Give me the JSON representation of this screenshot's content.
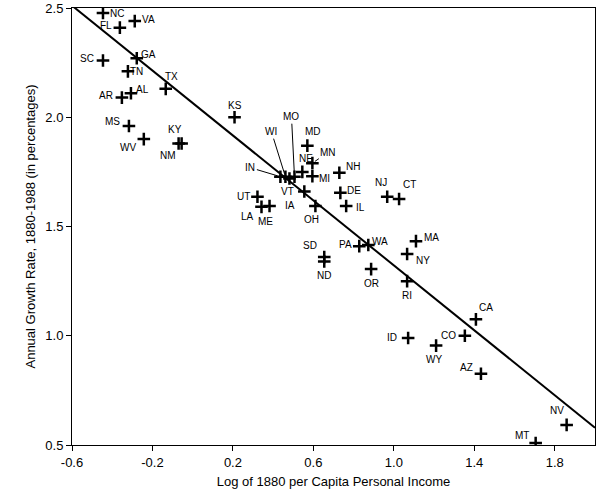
{
  "chart_data": {
    "type": "scatter",
    "x_label": "Log of 1880 per Capita Personal Income",
    "y_label": "Annual Growth Rate, 1880-1988 (in percentages)",
    "point_labels": [
      "NC",
      "VA",
      "FL",
      "GA",
      "SC",
      "TN",
      "TX",
      "AR",
      "AL",
      "KS",
      "MS",
      "WV",
      "KY",
      "NM",
      "IN",
      "WI",
      "VT",
      "MO",
      "NE",
      "MD",
      "MN",
      "NH",
      "MI",
      "DE",
      "IL",
      "IA",
      "OH",
      "UT",
      "LA",
      "ME",
      "NJ",
      "CT",
      "MA",
      "NY",
      "WA",
      "PA",
      "SD",
      "ND",
      "OR",
      "RI",
      "CA",
      "ID",
      "CO",
      "WY",
      "AZ",
      "MT",
      "NV"
    ],
    "x": [
      -0.446,
      -0.288,
      -0.362,
      -0.278,
      -0.446,
      -0.322,
      -0.134,
      -0.352,
      -0.307,
      0.208,
      -0.317,
      -0.243,
      -0.07,
      -0.055,
      0.436,
      0.461,
      0.481,
      0.506,
      0.545,
      0.57,
      0.595,
      0.729,
      0.595,
      0.734,
      0.763,
      0.555,
      0.61,
      0.322,
      0.342,
      0.382,
      0.967,
      1.026,
      1.11,
      1.066,
      0.873,
      0.828,
      0.654,
      0.654,
      0.887,
      1.066,
      1.408,
      1.071,
      1.353,
      1.21,
      1.433,
      1.705,
      1.859
    ],
    "y": [
      2.477,
      2.44,
      2.41,
      2.27,
      2.26,
      2.21,
      2.13,
      2.09,
      2.11,
      2.0,
      1.96,
      1.9,
      1.88,
      1.88,
      1.728,
      1.728,
      1.72,
      1.728,
      1.75,
      1.87,
      1.79,
      1.746,
      1.73,
      1.654,
      1.594,
      1.66,
      1.594,
      1.636,
      1.59,
      1.594,
      1.636,
      1.626,
      1.433,
      1.374,
      1.415,
      1.41,
      1.36,
      1.34,
      1.305,
      1.25,
      1.075,
      0.99,
      1.0,
      0.955,
      0.826,
      0.509,
      0.592
    ],
    "color": "#000000",
    "marker": "cross",
    "fit_line": {
      "type": "line",
      "x": [
        -0.6,
        2.0
      ],
      "y": [
        2.511,
        0.579
      ],
      "color": "#000000"
    },
    "xlim": [
      -0.6,
      2.0
    ],
    "ylim": [
      0.5,
      2.5
    ],
    "xticks": [
      -0.6,
      -0.2,
      0.2,
      0.6,
      {
        "value": 1.0,
        "label": "1.0"
      },
      1.4,
      1.8
    ],
    "yticks": [
      0.5,
      {
        "value": 1.0,
        "label": "1.0"
      },
      1.5,
      {
        "value": 2.0,
        "label": "2.0"
      },
      2.5
    ],
    "grid": false
  }
}
